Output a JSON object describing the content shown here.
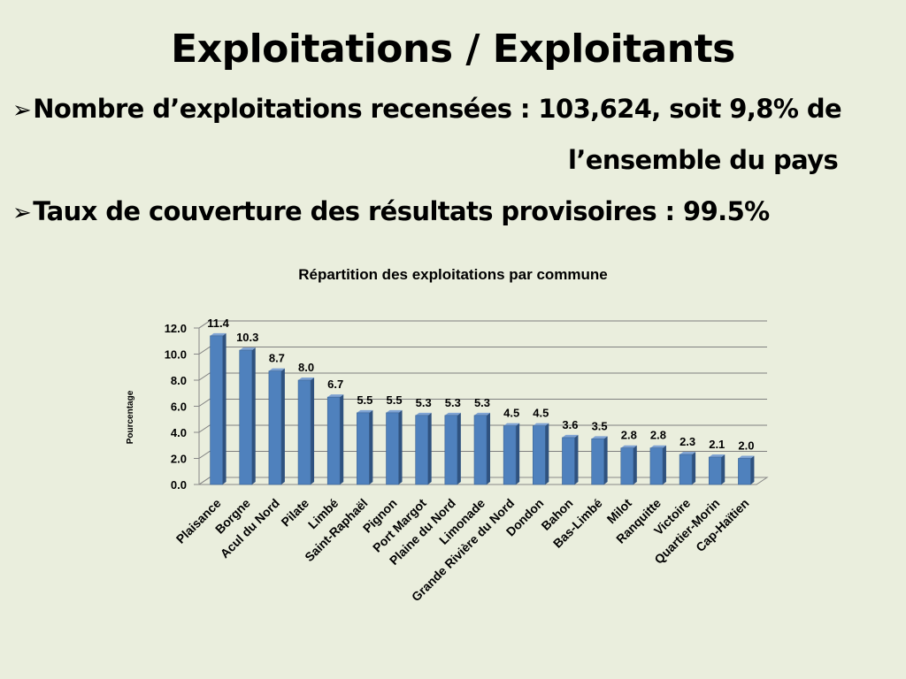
{
  "title": "Exploitations / Exploitants",
  "bullets": {
    "arrow_icon": "➢",
    "line1": "Nombre d’exploitations recensées :  103,624, soit 9,8% de",
    "line1_cont": "l’ensemble du pays",
    "line2": "Taux de couverture des résultats  provisoires : 99.5%"
  },
  "chart_data": {
    "type": "bar",
    "title": "Répartition des exploitations par commune",
    "xlabel": "",
    "ylabel": "Pourcentage",
    "ylim": [
      0,
      12
    ],
    "yticks": [
      "0.0",
      "2.0",
      "4.0",
      "6.0",
      "8.0",
      "10.0",
      "12.0"
    ],
    "grid": true,
    "bar_color": "#4f81bd",
    "categories": [
      "Plaisance",
      "Borgne",
      "Acul du Nord",
      "Pilate",
      "Limbé",
      "Saint-Raphaël",
      "Pignon",
      "Port Margot",
      "Plaine du Nord",
      "Limonade",
      "Grande Rivière du Nord",
      "Dondon",
      "Bahon",
      "Bas-Limbé",
      "Milot",
      "Ranquitte",
      "Victoire",
      "Quartier-Morin",
      "Cap-Haïtien"
    ],
    "values": [
      11.4,
      10.3,
      8.7,
      8.0,
      6.7,
      5.5,
      5.5,
      5.3,
      5.3,
      5.3,
      4.5,
      4.5,
      3.6,
      3.5,
      2.8,
      2.8,
      2.3,
      2.1,
      2.0
    ],
    "data_labels": [
      "11.4",
      "10.3",
      "8.7",
      "8.0",
      "6.7",
      "5.5",
      "5.5",
      "5.3",
      "5.3",
      "5.3",
      "4.5",
      "4.5",
      "3.6",
      "3.5",
      "2.8",
      "2.8",
      "2.3",
      "2.1",
      "2.0"
    ]
  }
}
